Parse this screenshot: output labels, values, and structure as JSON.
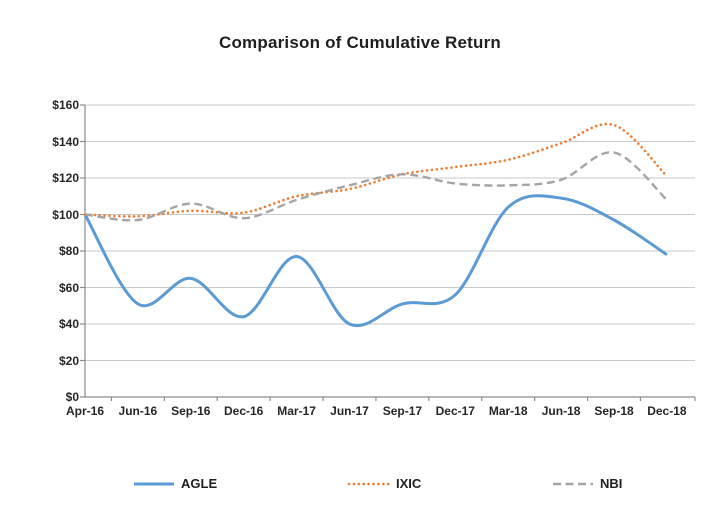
{
  "chart_data": {
    "type": "line",
    "title": "Comparison of Cumulative Return",
    "xlabel": "",
    "ylabel": "",
    "value_prefix": "$",
    "ylim": [
      0,
      160
    ],
    "y_step": 20,
    "y_tick_labels": [
      "$0",
      "$20",
      "$40",
      "$60",
      "$80",
      "$100",
      "$120",
      "$140",
      "$160"
    ],
    "categories": [
      "Apr-16",
      "Jun-16",
      "Sep-16",
      "Dec-16",
      "Mar-17",
      "Jun-17",
      "Sep-17",
      "Dec-17",
      "Mar-18",
      "Jun-18",
      "Sep-18",
      "Dec-18"
    ],
    "grid": "horizontal",
    "line_smoothing": true,
    "legend_position": "bottom",
    "series": [
      {
        "name": "AGLE",
        "color": "#5B9BD5",
        "line_style": "solid",
        "values": [
          100,
          51,
          65,
          44,
          77,
          40,
          51,
          56,
          104,
          109,
          97,
          78
        ]
      },
      {
        "name": "IXIC",
        "color": "#ED7D31",
        "line_style": "dotted",
        "values": [
          100,
          99,
          102,
          101,
          110,
          114,
          122,
          126,
          130,
          139,
          149,
          121
        ]
      },
      {
        "name": "NBI",
        "color": "#A5A5A5",
        "line_style": "dashed",
        "values": [
          100,
          97,
          106,
          98,
          108,
          116,
          122,
          117,
          116,
          119,
          134,
          108
        ]
      }
    ],
    "axis_color": "#8c8c8c",
    "grid_color": "#c9c9c9"
  }
}
